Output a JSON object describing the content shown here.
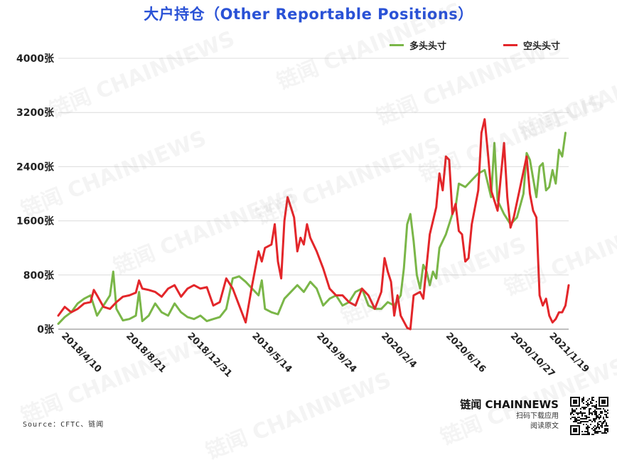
{
  "title": "大户持仓（Other Reportable Positions）",
  "legend": [
    {
      "name": "多头头寸",
      "color": "#7ab648"
    },
    {
      "name": "空头头寸",
      "color": "#e3262a"
    }
  ],
  "source": "Source：CFTC、链闻",
  "brand": {
    "logo": "链闻 CHAINNEWS",
    "line1": "扫码下载应用",
    "line2": "阅读原文"
  },
  "watermark_text": "链闻 CHAINNEWS",
  "chart_data": {
    "type": "line",
    "title": "大户持仓（Other Reportable Positions）",
    "xlabel": "",
    "ylabel": "",
    "ylim": [
      0,
      4000
    ],
    "y_ticks": [
      "0张",
      "800张",
      "1600张",
      "2400张",
      "3200张",
      "4000张"
    ],
    "y_tick_values": [
      0,
      800,
      1600,
      2400,
      3200,
      4000
    ],
    "x_tick_labels": [
      "2018/4/10",
      "2018/8/21",
      "2018/12/31",
      "2019/5/14",
      "2019/9/24",
      "2020/2/4",
      "2020/6/16",
      "2020/10/27",
      "2021/1/19"
    ],
    "x_tick_index": [
      0,
      20,
      39,
      59,
      79,
      99,
      119,
      139,
      151
    ],
    "n_points": 154,
    "grid": "horizontal",
    "legend_position": "top-right",
    "series": [
      {
        "name": "多头头寸",
        "color": "#7ab648",
        "keypoints": [
          [
            0,
            80
          ],
          [
            2,
            180
          ],
          [
            4,
            250
          ],
          [
            6,
            380
          ],
          [
            8,
            450
          ],
          [
            10,
            500
          ],
          [
            12,
            200
          ],
          [
            14,
            350
          ],
          [
            16,
            500
          ],
          [
            17,
            850
          ],
          [
            18,
            300
          ],
          [
            20,
            130
          ],
          [
            22,
            150
          ],
          [
            24,
            200
          ],
          [
            25,
            550
          ],
          [
            26,
            120
          ],
          [
            28,
            200
          ],
          [
            30,
            380
          ],
          [
            32,
            250
          ],
          [
            34,
            200
          ],
          [
            36,
            380
          ],
          [
            38,
            250
          ],
          [
            40,
            180
          ],
          [
            42,
            150
          ],
          [
            44,
            200
          ],
          [
            46,
            120
          ],
          [
            48,
            150
          ],
          [
            50,
            180
          ],
          [
            52,
            300
          ],
          [
            54,
            750
          ],
          [
            56,
            780
          ],
          [
            58,
            700
          ],
          [
            60,
            600
          ],
          [
            62,
            500
          ],
          [
            63,
            720
          ],
          [
            64,
            300
          ],
          [
            66,
            250
          ],
          [
            68,
            220
          ],
          [
            70,
            450
          ],
          [
            72,
            550
          ],
          [
            74,
            650
          ],
          [
            76,
            550
          ],
          [
            78,
            700
          ],
          [
            80,
            600
          ],
          [
            82,
            350
          ],
          [
            84,
            450
          ],
          [
            86,
            500
          ],
          [
            88,
            350
          ],
          [
            90,
            400
          ],
          [
            92,
            550
          ],
          [
            94,
            600
          ],
          [
            96,
            350
          ],
          [
            98,
            300
          ],
          [
            100,
            300
          ],
          [
            102,
            400
          ],
          [
            104,
            350
          ],
          [
            106,
            500
          ],
          [
            107,
            900
          ],
          [
            108,
            1550
          ],
          [
            109,
            1700
          ],
          [
            110,
            1300
          ],
          [
            111,
            800
          ],
          [
            112,
            600
          ],
          [
            113,
            950
          ],
          [
            114,
            850
          ],
          [
            115,
            650
          ],
          [
            116,
            850
          ],
          [
            117,
            750
          ],
          [
            118,
            1200
          ],
          [
            120,
            1400
          ],
          [
            122,
            1700
          ],
          [
            123,
            1800
          ],
          [
            124,
            2150
          ],
          [
            126,
            2100
          ],
          [
            128,
            2200
          ],
          [
            130,
            2300
          ],
          [
            132,
            2350
          ],
          [
            134,
            1950
          ],
          [
            135,
            2750
          ],
          [
            136,
            1900
          ],
          [
            138,
            1700
          ],
          [
            140,
            1550
          ],
          [
            142,
            1650
          ],
          [
            144,
            2000
          ],
          [
            145,
            2600
          ],
          [
            146,
            2500
          ],
          [
            148,
            1950
          ],
          [
            149,
            2400
          ],
          [
            150,
            2450
          ],
          [
            151,
            2050
          ],
          [
            152,
            2100
          ],
          [
            153,
            2350
          ],
          [
            154,
            2150
          ],
          [
            155,
            2650
          ],
          [
            156,
            2550
          ],
          [
            157,
            2900
          ]
        ]
      },
      {
        "name": "空头头寸",
        "color": "#e3262a",
        "keypoints": [
          [
            0,
            200
          ],
          [
            2,
            330
          ],
          [
            4,
            250
          ],
          [
            6,
            300
          ],
          [
            8,
            380
          ],
          [
            10,
            400
          ],
          [
            11,
            580
          ],
          [
            12,
            500
          ],
          [
            14,
            330
          ],
          [
            16,
            300
          ],
          [
            18,
            400
          ],
          [
            20,
            480
          ],
          [
            22,
            500
          ],
          [
            24,
            540
          ],
          [
            25,
            720
          ],
          [
            26,
            600
          ],
          [
            28,
            580
          ],
          [
            30,
            550
          ],
          [
            32,
            480
          ],
          [
            34,
            600
          ],
          [
            36,
            650
          ],
          [
            38,
            480
          ],
          [
            40,
            600
          ],
          [
            42,
            650
          ],
          [
            44,
            600
          ],
          [
            46,
            620
          ],
          [
            48,
            350
          ],
          [
            50,
            400
          ],
          [
            52,
            750
          ],
          [
            54,
            600
          ],
          [
            56,
            350
          ],
          [
            58,
            100
          ],
          [
            60,
            650
          ],
          [
            62,
            1150
          ],
          [
            63,
            1000
          ],
          [
            64,
            1200
          ],
          [
            66,
            1250
          ],
          [
            67,
            1550
          ],
          [
            68,
            1000
          ],
          [
            69,
            750
          ],
          [
            70,
            1600
          ],
          [
            71,
            1950
          ],
          [
            72,
            1800
          ],
          [
            73,
            1650
          ],
          [
            74,
            1150
          ],
          [
            75,
            1350
          ],
          [
            76,
            1250
          ],
          [
            77,
            1550
          ],
          [
            78,
            1350
          ],
          [
            80,
            1150
          ],
          [
            82,
            900
          ],
          [
            84,
            600
          ],
          [
            86,
            500
          ],
          [
            88,
            500
          ],
          [
            90,
            400
          ],
          [
            92,
            350
          ],
          [
            94,
            600
          ],
          [
            96,
            500
          ],
          [
            98,
            300
          ],
          [
            100,
            550
          ],
          [
            101,
            1050
          ],
          [
            102,
            850
          ],
          [
            103,
            700
          ],
          [
            104,
            200
          ],
          [
            105,
            500
          ],
          [
            106,
            200
          ],
          [
            108,
            20
          ],
          [
            109,
            0
          ],
          [
            110,
            500
          ],
          [
            112,
            550
          ],
          [
            113,
            450
          ],
          [
            115,
            1400
          ],
          [
            117,
            1800
          ],
          [
            118,
            2300
          ],
          [
            119,
            2050
          ],
          [
            120,
            2550
          ],
          [
            121,
            2500
          ],
          [
            122,
            1700
          ],
          [
            123,
            1850
          ],
          [
            124,
            1450
          ],
          [
            125,
            1400
          ],
          [
            126,
            1000
          ],
          [
            127,
            1050
          ],
          [
            128,
            1550
          ],
          [
            130,
            2050
          ],
          [
            131,
            2900
          ],
          [
            132,
            3100
          ],
          [
            133,
            2600
          ],
          [
            134,
            2050
          ],
          [
            136,
            1750
          ],
          [
            138,
            2750
          ],
          [
            139,
            1950
          ],
          [
            140,
            1500
          ],
          [
            141,
            1650
          ],
          [
            143,
            2100
          ],
          [
            145,
            2550
          ],
          [
            146,
            2000
          ],
          [
            147,
            1750
          ],
          [
            148,
            1650
          ],
          [
            149,
            500
          ],
          [
            150,
            350
          ],
          [
            151,
            450
          ],
          [
            152,
            200
          ],
          [
            153,
            100
          ],
          [
            154,
            150
          ],
          [
            155,
            250
          ],
          [
            156,
            250
          ],
          [
            157,
            350
          ],
          [
            158,
            650
          ]
        ]
      }
    ]
  }
}
